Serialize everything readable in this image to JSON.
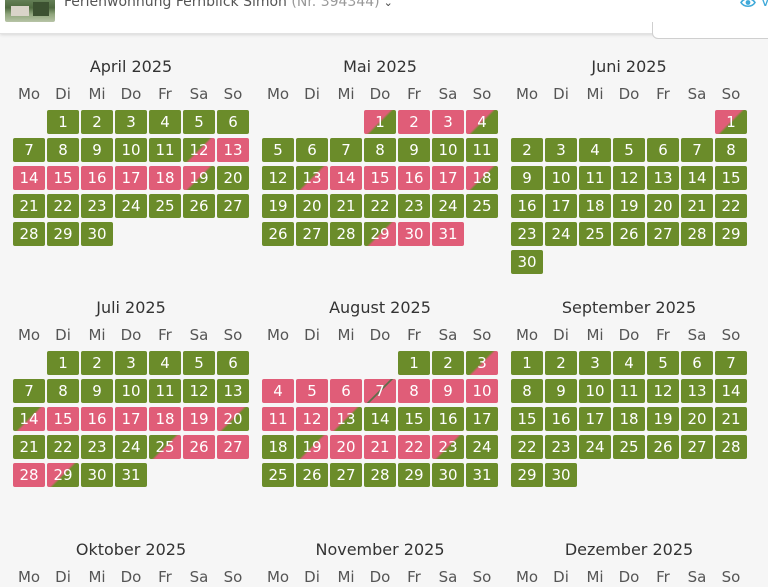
{
  "header": {
    "property_name": "Ferienwohnung Fernblick Simon",
    "property_nr": "(Nr. 394344)",
    "view_label": "V"
  },
  "weekdays": [
    "Mo",
    "Di",
    "Mi",
    "Do",
    "Fr",
    "Sa",
    "So"
  ],
  "colors": {
    "free": "#6b8c2a",
    "booked": "#e05d78",
    "link": "#3fa9d9"
  },
  "status_legend": {
    "g": "free",
    "r": "booked",
    "gr": "free, booked from afternoon",
    "rg": "booked until morning, then free",
    "rr": "booked (changeover)"
  },
  "months": [
    {
      "title": "April 2025",
      "offset": 1,
      "status": [
        "g",
        "g",
        "g",
        "g",
        "g",
        "g",
        "g",
        "g",
        "g",
        "g",
        "g",
        "gr",
        "r",
        "r",
        "r",
        "r",
        "r",
        "r",
        "rg",
        "g",
        "g",
        "g",
        "g",
        "g",
        "g",
        "g",
        "g",
        "g",
        "g",
        "g"
      ]
    },
    {
      "title": "Mai 2025",
      "offset": 3,
      "status": [
        "rg",
        "r",
        "r",
        "rg",
        "g",
        "g",
        "g",
        "g",
        "g",
        "g",
        "g",
        "g",
        "gr",
        "r",
        "r",
        "r",
        "r",
        "rg",
        "g",
        "g",
        "g",
        "g",
        "g",
        "g",
        "g",
        "g",
        "g",
        "g",
        "gr",
        "r",
        "r"
      ]
    },
    {
      "title": "Juni 2025",
      "offset": 6,
      "status": [
        "rg",
        "g",
        "g",
        "g",
        "g",
        "g",
        "g",
        "g",
        "g",
        "g",
        "g",
        "g",
        "g",
        "g",
        "g",
        "g",
        "g",
        "g",
        "g",
        "g",
        "g",
        "g",
        "g",
        "g",
        "g",
        "g",
        "g",
        "g",
        "g",
        "g"
      ]
    },
    {
      "title": "Juli 2025",
      "offset": 1,
      "status": [
        "g",
        "g",
        "g",
        "g",
        "g",
        "g",
        "g",
        "g",
        "g",
        "g",
        "g",
        "g",
        "g",
        "gr",
        "r",
        "r",
        "r",
        "r",
        "r",
        "rg",
        "g",
        "g",
        "g",
        "g",
        "gr",
        "r",
        "r",
        "r",
        "rg",
        "g",
        "g"
      ]
    },
    {
      "title": "August 2025",
      "offset": 4,
      "status": [
        "g",
        "g",
        "gr",
        "r",
        "r",
        "r",
        "rr",
        "r",
        "r",
        "r",
        "r",
        "r",
        "rg",
        "g",
        "g",
        "g",
        "g",
        "g",
        "gr",
        "r",
        "r",
        "r",
        "rg",
        "g",
        "g",
        "g",
        "g",
        "g",
        "g",
        "g",
        "g"
      ]
    },
    {
      "title": "September 2025",
      "offset": 0,
      "status": [
        "g",
        "g",
        "g",
        "g",
        "g",
        "g",
        "g",
        "g",
        "g",
        "g",
        "g",
        "g",
        "g",
        "g",
        "g",
        "g",
        "g",
        "g",
        "g",
        "g",
        "g",
        "g",
        "g",
        "g",
        "g",
        "g",
        "g",
        "g",
        "g",
        "g"
      ]
    },
    {
      "title": "Oktober 2025",
      "offset": 2,
      "status": []
    },
    {
      "title": "November 2025",
      "offset": 5,
      "status": []
    },
    {
      "title": "Dezember 2025",
      "offset": 0,
      "status": []
    }
  ]
}
